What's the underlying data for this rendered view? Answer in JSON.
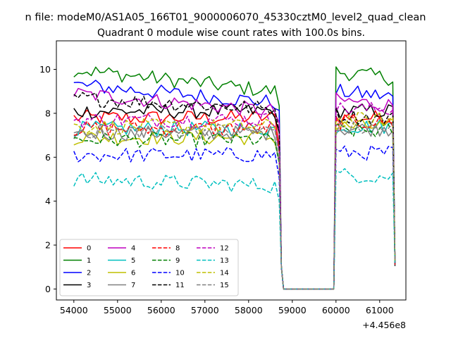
{
  "figure": {
    "suptitle": "n file: modeM0/AS1A05_166T01_9000006070_45330cztM0_level2_quad_clean"
  },
  "chart_data": {
    "type": "line",
    "title": "Quadrant 0 module wise count rates with 100.0s bins.",
    "xlabel": "",
    "ylabel": "",
    "x_offset_label": "+4.456e8",
    "xlim": [
      53600,
      61600
    ],
    "ylim": [
      -0.5,
      11.3
    ],
    "xticks": [
      54000,
      55000,
      56000,
      57000,
      58000,
      59000,
      60000,
      61000
    ],
    "yticks": [
      0,
      2,
      4,
      6,
      8,
      10
    ],
    "grid": false,
    "legend_position": "lower-left",
    "legend_columns": 4,
    "gaps": [
      {
        "x_from": 58800,
        "x_to": 59950,
        "value": 0
      }
    ],
    "sampling": {
      "segment1_x": [
        54000,
        58600,
        100
      ],
      "segment2_x": [
        60000,
        61300,
        100
      ]
    },
    "series": [
      {
        "name": "0",
        "color": "#ff0000",
        "dash": "solid",
        "level1": 7.8,
        "level2": 7.8,
        "slope": 0
      },
      {
        "name": "1",
        "color": "#008000",
        "dash": "solid",
        "level1": 10.0,
        "level2": 9.9,
        "slope": -1.0
      },
      {
        "name": "2",
        "color": "#0000ff",
        "dash": "solid",
        "level1": 9.3,
        "level2": 9.0,
        "slope": -0.8
      },
      {
        "name": "3",
        "color": "#000000",
        "dash": "solid",
        "level1": 8.1,
        "level2": 8.1,
        "slope": 0
      },
      {
        "name": "4",
        "color": "#bf00bf",
        "dash": "solid",
        "level1": 8.9,
        "level2": 8.6,
        "slope": -0.8
      },
      {
        "name": "5",
        "color": "#00bfbf",
        "dash": "solid",
        "level1": 7.3,
        "level2": 7.4,
        "slope": 0
      },
      {
        "name": "6",
        "color": "#bfbf00",
        "dash": "solid",
        "level1": 6.9,
        "level2": 7.4,
        "slope": 0
      },
      {
        "name": "7",
        "color": "#808080",
        "dash": "solid",
        "level1": 7.1,
        "level2": 7.3,
        "slope": 0
      },
      {
        "name": "8",
        "color": "#ff0000",
        "dash": "dashed",
        "level1": 7.3,
        "level2": 7.6,
        "slope": 0
      },
      {
        "name": "9",
        "color": "#008000",
        "dash": "dashed",
        "level1": 6.8,
        "level2": 7.2,
        "slope": 0
      },
      {
        "name": "10",
        "color": "#0000ff",
        "dash": "dashed",
        "level1": 6.1,
        "level2": 6.2,
        "slope": 0
      },
      {
        "name": "11",
        "color": "#000000",
        "dash": "dashed",
        "level1": 8.7,
        "level2": 7.9,
        "slope": -0.5
      },
      {
        "name": "12",
        "color": "#bf00bf",
        "dash": "dashed",
        "level1": 7.7,
        "level2": 8.2,
        "slope": 0
      },
      {
        "name": "13",
        "color": "#00bfbf",
        "dash": "dashed",
        "level1": 5.0,
        "level2": 5.2,
        "slope": -0.3
      },
      {
        "name": "14",
        "color": "#bfbf00",
        "dash": "dashed",
        "level1": 7.4,
        "level2": 7.7,
        "slope": 0
      },
      {
        "name": "15",
        "color": "#808080",
        "dash": "dashed",
        "level1": 7.2,
        "level2": 7.3,
        "slope": 0
      }
    ]
  }
}
